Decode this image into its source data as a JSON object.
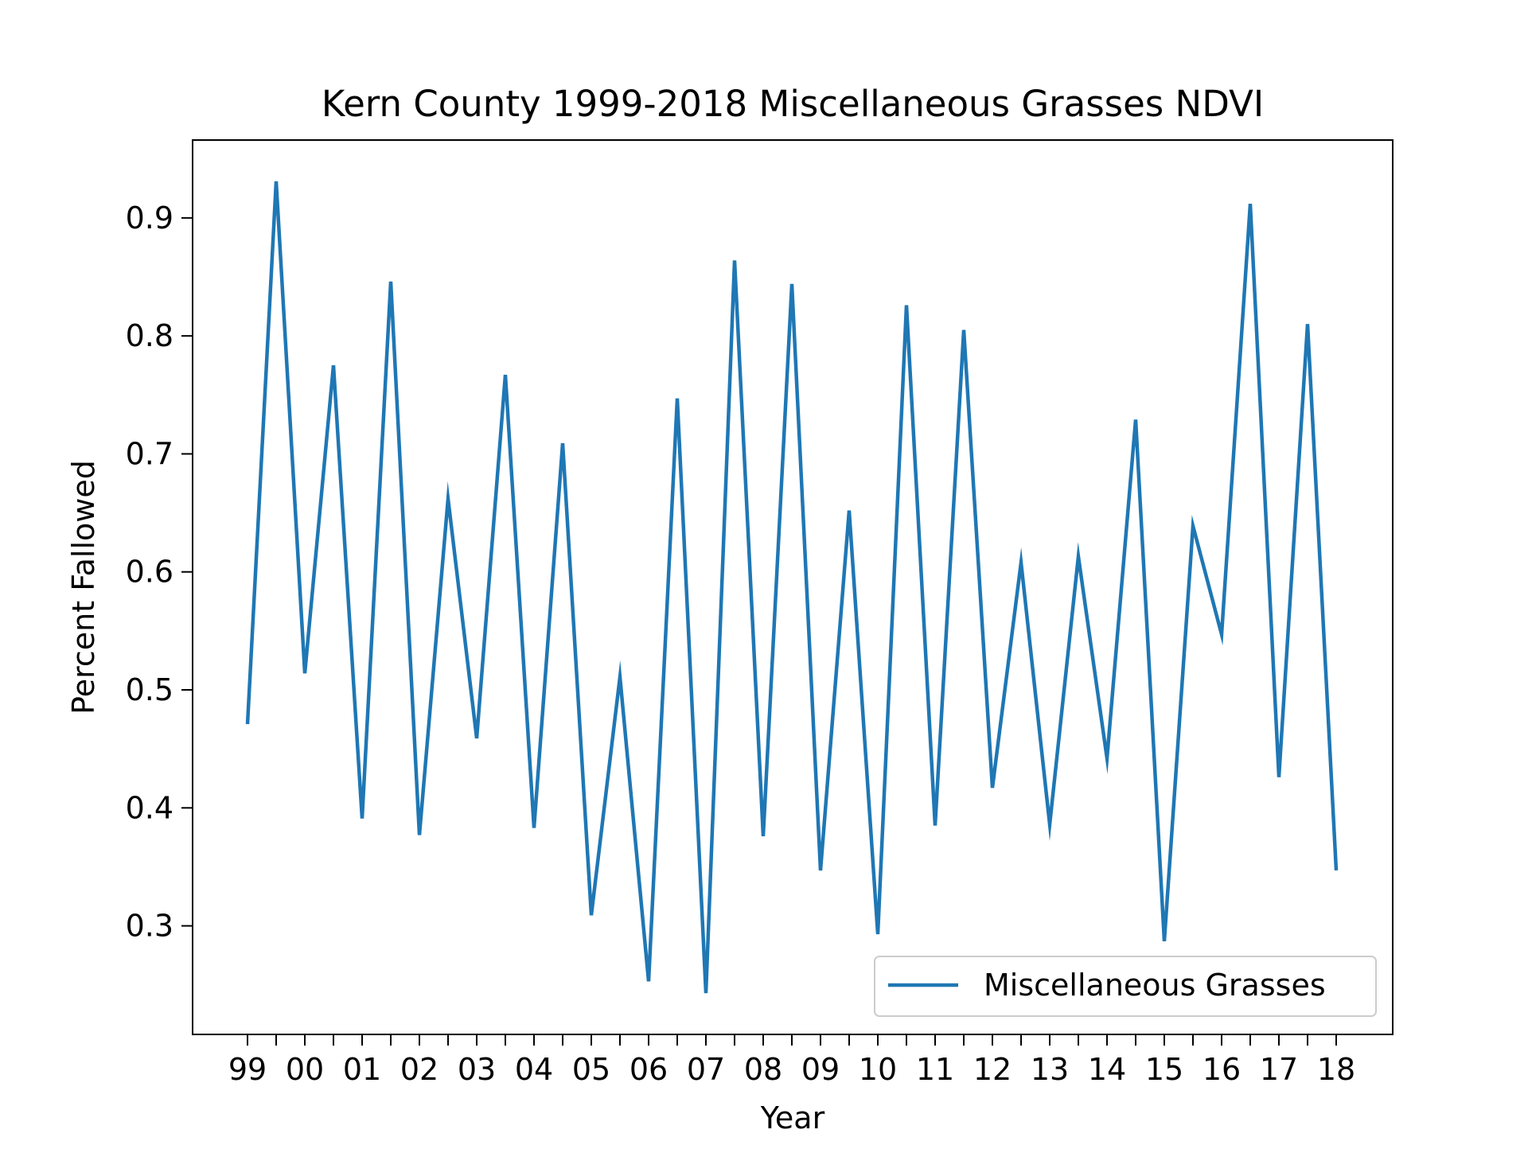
{
  "chart_data": {
    "type": "line",
    "title": "Kern County 1999-2018 Miscellaneous Grasses NDVI",
    "xlabel": "Year",
    "ylabel": "Percent Fallowed",
    "x_tick_labels": [
      "99",
      "00",
      "01",
      "02",
      "03",
      "04",
      "05",
      "06",
      "07",
      "08",
      "09",
      "10",
      "11",
      "12",
      "13",
      "14",
      "15",
      "16",
      "17",
      "18"
    ],
    "y_tick_labels": [
      "0.3",
      "0.4",
      "0.5",
      "0.6",
      "0.7",
      "0.8",
      "0.9"
    ],
    "y_ticks": [
      0.3,
      0.4,
      0.5,
      0.6,
      0.7,
      0.8,
      0.9
    ],
    "ylim": [
      0.208,
      0.966
    ],
    "xlim": [
      -0.95,
      19.95
    ],
    "grid": false,
    "legend_position": "lower right",
    "series": [
      {
        "name": "Miscellaneous Grasses",
        "color": "#1f77b4",
        "x": [
          0,
          0.5,
          1,
          1.5,
          2,
          2.5,
          3,
          3.5,
          4,
          4.5,
          5,
          5.5,
          6,
          6.5,
          7,
          7.5,
          8,
          8.5,
          9,
          9.5,
          10,
          10.5,
          11,
          11.5,
          12,
          12.5,
          13,
          13.5,
          14,
          14.5,
          15,
          15.5,
          16,
          16.5,
          17,
          17.5,
          18,
          18.5,
          19
        ],
        "values": [
          0.471,
          0.931,
          0.514,
          0.775,
          0.391,
          0.846,
          0.377,
          0.662,
          0.459,
          0.767,
          0.383,
          0.709,
          0.309,
          0.511,
          0.253,
          0.747,
          0.243,
          0.864,
          0.376,
          0.844,
          0.347,
          0.652,
          0.293,
          0.826,
          0.385,
          0.805,
          0.417,
          0.608,
          0.386,
          0.613,
          0.442,
          0.729,
          0.287,
          0.639,
          0.547,
          0.912,
          0.426,
          0.81,
          0.347
        ]
      }
    ]
  }
}
